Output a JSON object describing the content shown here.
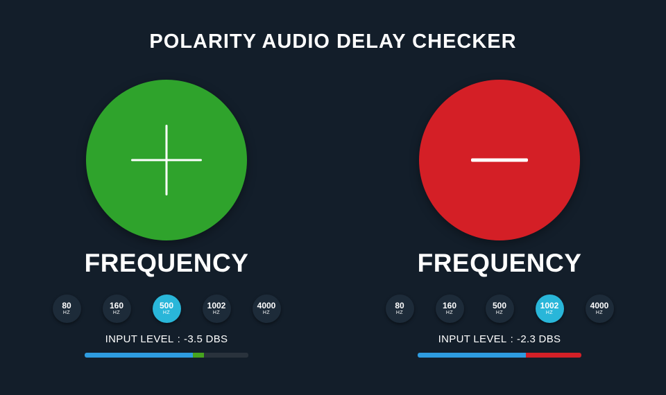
{
  "title": "POLARITY AUDIO DELAY CHECKER",
  "colors": {
    "background": "#131e2a",
    "accent_blue": "#2e9ce0",
    "selected_cyan": "#29b6d9",
    "positive_green": "#2fa32c",
    "negative_red": "#d41f26"
  },
  "panels": [
    {
      "name": "positive",
      "polarity_symbol": "plus",
      "circle_color": "#2fa32c",
      "frequency_heading": "FREQUENCY",
      "frequencies": [
        {
          "value": "80",
          "unit": "HZ",
          "selected": false
        },
        {
          "value": "160",
          "unit": "HZ",
          "selected": false
        },
        {
          "value": "500",
          "unit": "HZ",
          "selected": true
        },
        {
          "value": "1002",
          "unit": "HZ",
          "selected": false
        },
        {
          "value": "4000",
          "unit": "HZ",
          "selected": false
        }
      ],
      "input_level": {
        "label": "INPUT LEVEL",
        "separator": ":",
        "value": "-3.5 DBS"
      },
      "meter": {
        "segments": [
          {
            "color": "#2e9ce0",
            "width_pct": 66
          },
          {
            "color": "#46a31e",
            "width_pct": 7
          },
          {
            "color": "#29323c",
            "width_pct": 27
          }
        ]
      }
    },
    {
      "name": "negative",
      "polarity_symbol": "minus",
      "circle_color": "#d41f26",
      "frequency_heading": "FREQUENCY",
      "frequencies": [
        {
          "value": "80",
          "unit": "HZ",
          "selected": false
        },
        {
          "value": "160",
          "unit": "HZ",
          "selected": false
        },
        {
          "value": "500",
          "unit": "HZ",
          "selected": false
        },
        {
          "value": "1002",
          "unit": "HZ",
          "selected": true
        },
        {
          "value": "4000",
          "unit": "HZ",
          "selected": false
        }
      ],
      "input_level": {
        "label": "INPUT LEVEL",
        "separator": ":",
        "value": "-2.3 DBS"
      },
      "meter": {
        "segments": [
          {
            "color": "#2e9ce0",
            "width_pct": 66
          },
          {
            "color": "#d32027",
            "width_pct": 34
          }
        ]
      }
    }
  ]
}
